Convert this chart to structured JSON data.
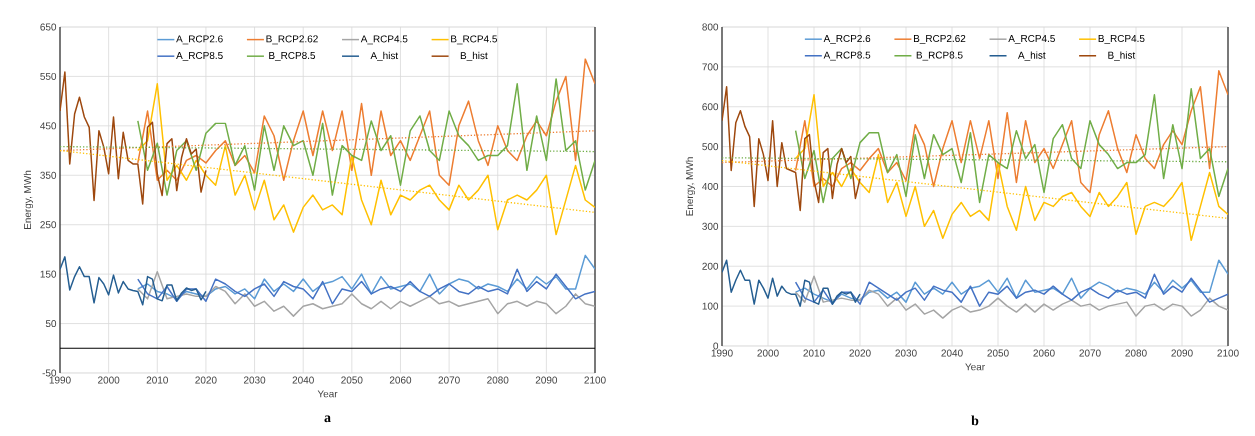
{
  "chart_data": [
    {
      "type": "line",
      "xlabel": "Year",
      "ylabel": "Energy, MWh",
      "annotations": [
        "a"
      ],
      "xlim": [
        1990,
        2100
      ],
      "xticks": [
        1990,
        2000,
        2010,
        2020,
        2030,
        2040,
        2050,
        2060,
        2070,
        2080,
        2090,
        2100
      ],
      "ylim": [
        -50,
        650
      ],
      "yticks": [
        -50,
        50,
        150,
        250,
        350,
        450,
        550,
        650
      ],
      "grid": true,
      "legend": "top",
      "marker": "none",
      "line_style": "solid",
      "ref_lines": [
        {
          "axis": "y",
          "value": 0,
          "color": "#000000"
        }
      ],
      "x": [
        2006,
        2008,
        2010,
        2012,
        2014,
        2016,
        2018,
        2020,
        2022,
        2024,
        2026,
        2028,
        2030,
        2032,
        2034,
        2036,
        2038,
        2040,
        2042,
        2044,
        2046,
        2048,
        2050,
        2052,
        2054,
        2056,
        2058,
        2060,
        2062,
        2064,
        2066,
        2068,
        2070,
        2072,
        2074,
        2076,
        2078,
        2080,
        2082,
        2084,
        2086,
        2088,
        2090,
        2092,
        2094,
        2096,
        2098,
        2100
      ],
      "series": [
        {
          "name": "A_RCP2.6",
          "color": "#5b9bd5",
          "values": [
            120,
            130,
            115,
            110,
            100,
            115,
            110,
            105,
            120,
            125,
            110,
            120,
            100,
            140,
            115,
            130,
            115,
            140,
            115,
            130,
            135,
            145,
            120,
            150,
            110,
            145,
            120,
            125,
            130,
            115,
            150,
            110,
            130,
            140,
            135,
            120,
            130,
            125,
            115,
            140,
            120,
            145,
            130,
            145,
            120,
            120,
            188,
            160
          ]
        },
        {
          "name": "B_RCP2.62",
          "color": "#ed7d31",
          "values": [
            375,
            480,
            340,
            360,
            340,
            380,
            390,
            375,
            400,
            420,
            370,
            390,
            355,
            470,
            430,
            340,
            420,
            480,
            390,
            480,
            400,
            480,
            360,
            495,
            350,
            480,
            390,
            420,
            380,
            430,
            480,
            350,
            330,
            450,
            500,
            420,
            370,
            450,
            400,
            380,
            430,
            460,
            430,
            500,
            550,
            380,
            585,
            535
          ]
        },
        {
          "name": "A_RCP4.5",
          "color": "#a5a5a5",
          "values": [
            120,
            100,
            155,
            100,
            105,
            110,
            105,
            105,
            125,
            115,
            90,
            110,
            85,
            95,
            75,
            85,
            65,
            85,
            90,
            80,
            85,
            90,
            110,
            90,
            80,
            95,
            80,
            95,
            85,
            95,
            105,
            90,
            95,
            85,
            90,
            95,
            100,
            70,
            90,
            95,
            85,
            95,
            90,
            70,
            85,
            110,
            90,
            85
          ]
        },
        {
          "name": "B_RCP4.5",
          "color": "#ffc000",
          "values": [
            400,
            420,
            535,
            340,
            370,
            340,
            380,
            350,
            330,
            410,
            310,
            350,
            280,
            340,
            260,
            290,
            235,
            285,
            310,
            280,
            290,
            270,
            390,
            300,
            250,
            340,
            270,
            310,
            300,
            320,
            330,
            300,
            280,
            330,
            300,
            320,
            350,
            240,
            300,
            310,
            300,
            320,
            350,
            230,
            300,
            370,
            300,
            285
          ]
        },
        {
          "name": "A_RCP8.5",
          "color": "#4472c4",
          "values": [
            140,
            110,
            100,
            125,
            95,
            120,
            120,
            95,
            140,
            130,
            115,
            105,
            120,
            130,
            105,
            135,
            125,
            120,
            100,
            135,
            90,
            120,
            115,
            135,
            110,
            120,
            125,
            115,
            135,
            115,
            105,
            120,
            130,
            115,
            110,
            125,
            115,
            120,
            110,
            160,
            115,
            135,
            120,
            150,
            125,
            100,
            110,
            115
          ]
        },
        {
          "name": "B_RCP8.5",
          "color": "#70ad47",
          "values": [
            460,
            360,
            415,
            310,
            400,
            420,
            360,
            435,
            455,
            455,
            370,
            410,
            320,
            450,
            360,
            450,
            410,
            420,
            350,
            455,
            310,
            410,
            390,
            380,
            460,
            400,
            430,
            330,
            440,
            470,
            400,
            380,
            480,
            430,
            410,
            380,
            390,
            390,
            410,
            535,
            360,
            470,
            380,
            545,
            400,
            420,
            320,
            380
          ]
        },
        {
          "name": "A_hist",
          "color": "#255e91",
          "x": [
            1990,
            1991,
            1992,
            1993,
            1994,
            1995,
            1996,
            1997,
            1998,
            1999,
            2000,
            2001,
            2002,
            2003,
            2004,
            2005,
            2006,
            2007,
            2008,
            2009,
            2010,
            2011,
            2012,
            2013,
            2014,
            2015,
            2016,
            2017,
            2018,
            2019,
            2020
          ],
          "values": [
            160,
            185,
            118,
            145,
            165,
            145,
            145,
            92,
            143,
            130,
            108,
            148,
            112,
            135,
            120,
            117,
            115,
            88,
            145,
            140,
            100,
            96,
            128,
            128,
            96,
            112,
            122,
            117,
            120,
            98,
            115
          ]
        },
        {
          "name": "B_hist",
          "color": "#9e480e",
          "x": [
            1990,
            1991,
            1992,
            1993,
            1994,
            1995,
            1996,
            1997,
            1998,
            1999,
            2000,
            2001,
            2002,
            2003,
            2004,
            2005,
            2006,
            2007,
            2008,
            2009,
            2010,
            2011,
            2012,
            2013,
            2014,
            2015,
            2016,
            2017,
            2018,
            2019,
            2020
          ],
          "values": [
            480,
            559,
            373,
            474,
            508,
            468,
            447,
            299,
            440,
            407,
            353,
            468,
            343,
            437,
            380,
            373,
            373,
            292,
            447,
            457,
            353,
            309,
            414,
            424,
            319,
            386,
            424,
            393,
            403,
            316,
            360
          ]
        },
        {
          "type": "line",
          "line_style": "dotted",
          "color": "#ed7d31",
          "x": [
            1990,
            2100
          ],
          "values": [
            400,
            440
          ]
        },
        {
          "type": "line",
          "line_style": "dotted",
          "color": "#70ad47",
          "x": [
            1990,
            2100
          ],
          "values": [
            408,
            398
          ]
        },
        {
          "type": "line",
          "line_style": "dotted",
          "color": "#ffc000",
          "x": [
            1990,
            2100
          ],
          "values": [
            400,
            275
          ]
        }
      ]
    },
    {
      "type": "line",
      "xlabel": "Year",
      "ylabel": "Energy, MWh",
      "annotations": [
        "b"
      ],
      "xlim": [
        1990,
        2100
      ],
      "xticks": [
        1990,
        2000,
        2010,
        2020,
        2030,
        2040,
        2050,
        2060,
        2070,
        2080,
        2090,
        2100
      ],
      "ylim": [
        0,
        800
      ],
      "yticks": [
        0,
        100,
        200,
        300,
        400,
        500,
        600,
        700,
        800
      ],
      "grid": true,
      "legend": "top",
      "marker": "none",
      "line_style": "solid",
      "x": [
        2006,
        2008,
        2010,
        2012,
        2014,
        2016,
        2018,
        2020,
        2022,
        2024,
        2026,
        2028,
        2030,
        2032,
        2034,
        2036,
        2038,
        2040,
        2042,
        2044,
        2046,
        2048,
        2050,
        2052,
        2054,
        2056,
        2058,
        2060,
        2062,
        2064,
        2066,
        2068,
        2070,
        2072,
        2074,
        2076,
        2078,
        2080,
        2082,
        2084,
        2086,
        2088,
        2090,
        2092,
        2094,
        2096,
        2098,
        2100
      ],
      "series": [
        {
          "name": "A_RCP2.6",
          "color": "#5b9bd5",
          "values": [
            135,
            145,
            130,
            120,
            110,
            130,
            120,
            115,
            135,
            140,
            120,
            135,
            110,
            160,
            130,
            145,
            130,
            160,
            130,
            145,
            150,
            165,
            135,
            170,
            120,
            165,
            135,
            140,
            145,
            130,
            170,
            120,
            145,
            160,
            150,
            135,
            145,
            140,
            130,
            160,
            135,
            165,
            145,
            165,
            135,
            135,
            215,
            180
          ]
        },
        {
          "name": "B_RCP2.62",
          "color": "#ed7d31",
          "values": [
            440,
            565,
            400,
            420,
            400,
            445,
            460,
            440,
            470,
            495,
            435,
            460,
            415,
            555,
            505,
            400,
            495,
            565,
            460,
            565,
            470,
            565,
            420,
            585,
            410,
            565,
            460,
            495,
            445,
            505,
            565,
            410,
            385,
            530,
            590,
            495,
            435,
            530,
            470,
            445,
            505,
            540,
            505,
            590,
            650,
            445,
            690,
            630
          ]
        },
        {
          "name": "A_RCP4.5",
          "color": "#a5a5a5",
          "values": [
            135,
            110,
            175,
            110,
            115,
            120,
            115,
            115,
            140,
            130,
            100,
            120,
            90,
            105,
            80,
            90,
            70,
            90,
            100,
            85,
            90,
            100,
            120,
            100,
            85,
            105,
            85,
            105,
            90,
            105,
            115,
            100,
            105,
            90,
            100,
            105,
            110,
            75,
            100,
            105,
            90,
            105,
            100,
            75,
            90,
            120,
            100,
            90
          ]
        },
        {
          "name": "B_RCP4.5",
          "color": "#ffc000",
          "values": [
            470,
            495,
            630,
            400,
            435,
            400,
            445,
            410,
            385,
            480,
            360,
            410,
            325,
            400,
            300,
            340,
            270,
            330,
            360,
            325,
            340,
            315,
            460,
            350,
            290,
            400,
            315,
            360,
            350,
            375,
            385,
            350,
            325,
            385,
            350,
            375,
            410,
            280,
            350,
            360,
            350,
            375,
            410,
            265,
            350,
            435,
            350,
            330
          ]
        },
        {
          "name": "A_RCP8.5",
          "color": "#4472c4",
          "values": [
            160,
            120,
            110,
            140,
            105,
            135,
            135,
            105,
            160,
            145,
            130,
            115,
            135,
            145,
            115,
            150,
            140,
            135,
            110,
            150,
            100,
            135,
            130,
            150,
            120,
            135,
            140,
            130,
            150,
            130,
            115,
            135,
            145,
            130,
            120,
            140,
            130,
            135,
            120,
            180,
            130,
            150,
            135,
            170,
            140,
            110,
            120,
            130
          ]
        },
        {
          "name": "B_RCP8.5",
          "color": "#70ad47",
          "values": [
            540,
            420,
            490,
            360,
            470,
            495,
            420,
            510,
            535,
            535,
            435,
            480,
            375,
            530,
            420,
            530,
            480,
            495,
            410,
            535,
            360,
            480,
            460,
            445,
            540,
            470,
            505,
            385,
            520,
            555,
            470,
            445,
            565,
            505,
            480,
            445,
            460,
            460,
            480,
            630,
            420,
            555,
            445,
            645,
            470,
            495,
            375,
            445
          ]
        },
        {
          "name": "A_hist",
          "color": "#255e91",
          "x": [
            1990,
            1991,
            1992,
            1993,
            1994,
            1995,
            1996,
            1997,
            1998,
            1999,
            2000,
            2001,
            2002,
            2003,
            2004,
            2005,
            2006,
            2007,
            2008,
            2009,
            2010,
            2011,
            2012,
            2013,
            2014,
            2015,
            2016,
            2017,
            2018,
            2019,
            2020
          ],
          "values": [
            185,
            215,
            135,
            165,
            190,
            165,
            165,
            105,
            165,
            145,
            120,
            170,
            125,
            150,
            135,
            130,
            130,
            100,
            165,
            160,
            110,
            105,
            145,
            145,
            105,
            125,
            135,
            130,
            135,
            110,
            130
          ]
        },
        {
          "name": "B_hist",
          "color": "#9e480e",
          "x": [
            1990,
            1991,
            1992,
            1993,
            1994,
            1995,
            1996,
            1997,
            1998,
            1999,
            2000,
            2001,
            2002,
            2003,
            2004,
            2005,
            2006,
            2007,
            2008,
            2009,
            2010,
            2011,
            2012,
            2013,
            2014,
            2015,
            2016,
            2017,
            2018,
            2019,
            2020
          ],
          "values": [
            565,
            650,
            440,
            560,
            590,
            550,
            525,
            350,
            520,
            480,
            415,
            565,
            400,
            510,
            445,
            440,
            435,
            340,
            520,
            530,
            415,
            360,
            485,
            495,
            370,
            455,
            495,
            460,
            475,
            370,
            420
          ]
        },
        {
          "type": "line",
          "line_style": "dotted",
          "color": "#ed7d31",
          "x": [
            1990,
            2100
          ],
          "values": [
            460,
            500
          ]
        },
        {
          "type": "line",
          "line_style": "dotted",
          "color": "#70ad47",
          "x": [
            1990,
            2100
          ],
          "values": [
            472,
            462
          ]
        },
        {
          "type": "line",
          "line_style": "dotted",
          "color": "#ffc000",
          "x": [
            1990,
            2100
          ],
          "values": [
            465,
            320
          ]
        }
      ]
    }
  ]
}
